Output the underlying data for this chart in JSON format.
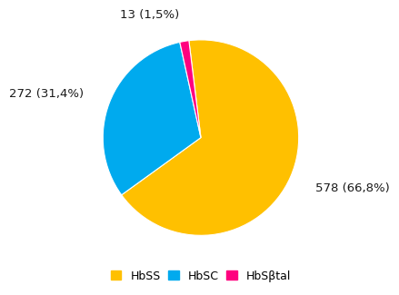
{
  "labels": [
    "HbSS",
    "HbSC",
    "HbSβtal"
  ],
  "values": [
    578,
    272,
    13
  ],
  "colors": [
    "#FFC000",
    "#00AAEE",
    "#FF007F"
  ],
  "label_texts": [
    "578 (66,8%)",
    "272 (31,4%)",
    "13 (1,5%)"
  ],
  "legend_labels": [
    "HbSS",
    "HbSC",
    "HbSβtal"
  ],
  "startangle": 97,
  "background_color": "#ffffff",
  "label_fontsize": 9.5,
  "legend_fontsize": 9
}
